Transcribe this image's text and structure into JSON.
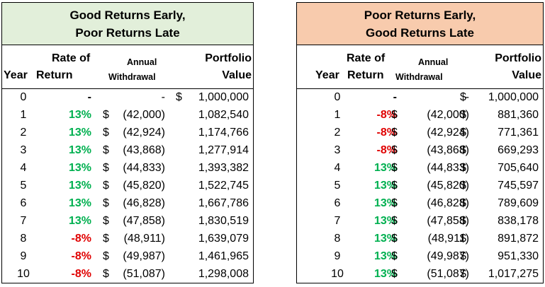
{
  "tables": [
    {
      "title_line1": "Good Returns Early,",
      "title_line2": "Poor Returns Late",
      "headers": {
        "year": "Year",
        "rate_line1": "Rate of",
        "rate_line2": "Return",
        "withdrawal_line1": "Annual",
        "withdrawal_line2": "Withdrawal",
        "value_line1": "Portfolio",
        "value_line2": "Value"
      },
      "rows": [
        {
          "year": "0",
          "rate": "-",
          "rate_color": "#000000",
          "w_dollar": "",
          "withdrawal": "-",
          "v_dollar": "$",
          "value": "1,000,000"
        },
        {
          "year": "1",
          "rate": "13%",
          "rate_color": "#00b050",
          "w_dollar": "$",
          "withdrawal": "(42,000)",
          "v_dollar": "",
          "value": "1,082,540"
        },
        {
          "year": "2",
          "rate": "13%",
          "rate_color": "#00b050",
          "w_dollar": "$",
          "withdrawal": "(42,924)",
          "v_dollar": "",
          "value": "1,174,766"
        },
        {
          "year": "3",
          "rate": "13%",
          "rate_color": "#00b050",
          "w_dollar": "$",
          "withdrawal": "(43,868)",
          "v_dollar": "",
          "value": "1,277,914"
        },
        {
          "year": "4",
          "rate": "13%",
          "rate_color": "#00b050",
          "w_dollar": "$",
          "withdrawal": "(44,833)",
          "v_dollar": "",
          "value": "1,393,382"
        },
        {
          "year": "5",
          "rate": "13%",
          "rate_color": "#00b050",
          "w_dollar": "$",
          "withdrawal": "(45,820)",
          "v_dollar": "",
          "value": "1,522,745"
        },
        {
          "year": "6",
          "rate": "13%",
          "rate_color": "#00b050",
          "w_dollar": "$",
          "withdrawal": "(46,828)",
          "v_dollar": "",
          "value": "1,667,786"
        },
        {
          "year": "7",
          "rate": "13%",
          "rate_color": "#00b050",
          "w_dollar": "$",
          "withdrawal": "(47,858)",
          "v_dollar": "",
          "value": "1,830,519"
        },
        {
          "year": "8",
          "rate": "-8%",
          "rate_color": "#e00000",
          "w_dollar": "$",
          "withdrawal": "(48,911)",
          "v_dollar": "",
          "value": "1,639,079"
        },
        {
          "year": "9",
          "rate": "-8%",
          "rate_color": "#e00000",
          "w_dollar": "$",
          "withdrawal": "(49,987)",
          "v_dollar": "",
          "value": "1,461,965"
        },
        {
          "year": "10",
          "rate": "-8%",
          "rate_color": "#e00000",
          "w_dollar": "$",
          "withdrawal": "(51,087)",
          "v_dollar": "",
          "value": "1,298,008"
        }
      ]
    },
    {
      "title_line1": "Poor Returns Early,",
      "title_line2": "Good Returns Late",
      "headers": {
        "year": "Year",
        "rate_line1": "Rate of",
        "rate_line2": "Return",
        "withdrawal_line1": "Annual",
        "withdrawal_line2": "Withdrawal",
        "value_line1": "Portfolio",
        "value_line2": "Value"
      },
      "rows": [
        {
          "year": "0",
          "rate": "-",
          "rate_color": "#000000",
          "w_dollar": "",
          "withdrawal": "-",
          "v_dollar": "$",
          "value": "1,000,000"
        },
        {
          "year": "1",
          "rate": "-8%",
          "rate_color": "#e00000",
          "w_dollar": "$",
          "withdrawal": "(42,000)",
          "v_dollar": "$",
          "value": "881,360"
        },
        {
          "year": "2",
          "rate": "-8%",
          "rate_color": "#e00000",
          "w_dollar": "$",
          "withdrawal": "(42,924)",
          "v_dollar": "$",
          "value": "771,361"
        },
        {
          "year": "3",
          "rate": "-8%",
          "rate_color": "#e00000",
          "w_dollar": "$",
          "withdrawal": "(43,868)",
          "v_dollar": "$",
          "value": "669,293"
        },
        {
          "year": "4",
          "rate": "13%",
          "rate_color": "#00b050",
          "w_dollar": "$",
          "withdrawal": "(44,833)",
          "v_dollar": "$",
          "value": "705,640"
        },
        {
          "year": "5",
          "rate": "13%",
          "rate_color": "#00b050",
          "w_dollar": "$",
          "withdrawal": "(45,820)",
          "v_dollar": "$",
          "value": "745,597"
        },
        {
          "year": "6",
          "rate": "13%",
          "rate_color": "#00b050",
          "w_dollar": "$",
          "withdrawal": "(46,828)",
          "v_dollar": "$",
          "value": "789,609"
        },
        {
          "year": "7",
          "rate": "13%",
          "rate_color": "#00b050",
          "w_dollar": "$",
          "withdrawal": "(47,858)",
          "v_dollar": "$",
          "value": "838,178"
        },
        {
          "year": "8",
          "rate": "13%",
          "rate_color": "#00b050",
          "w_dollar": "$",
          "withdrawal": "(48,911)",
          "v_dollar": "$",
          "value": "891,872"
        },
        {
          "year": "9",
          "rate": "13%",
          "rate_color": "#00b050",
          "w_dollar": "$",
          "withdrawal": "(49,987)",
          "v_dollar": "$",
          "value": "951,330"
        },
        {
          "year": "10",
          "rate": "13%",
          "rate_color": "#00b050",
          "w_dollar": "$",
          "withdrawal": "(51,087)",
          "v_dollar": "$",
          "value": "1,017,275"
        }
      ]
    }
  ]
}
